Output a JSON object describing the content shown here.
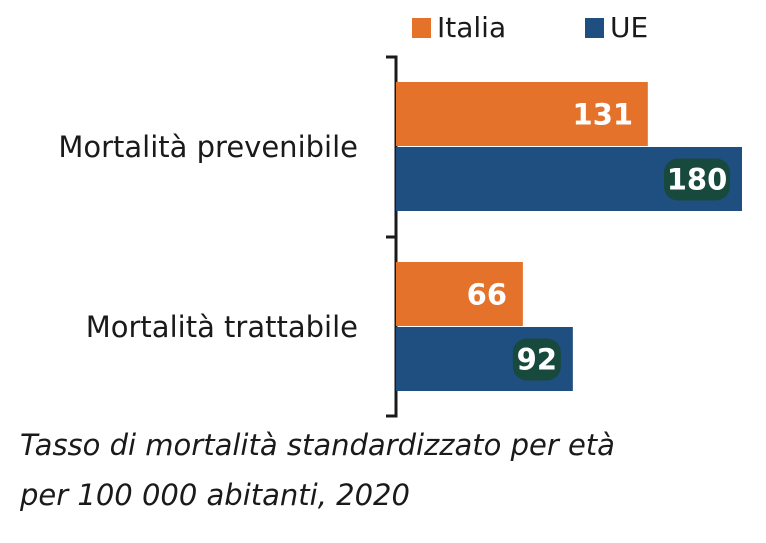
{
  "chart_data": {
    "type": "bar",
    "orientation": "horizontal",
    "categories": [
      "Mortalità prevenibile",
      "Mortalità trattabile"
    ],
    "series": [
      {
        "name": "Italia",
        "values": [
          131,
          66
        ],
        "color": "#e5722a"
      },
      {
        "name": "UE",
        "values": [
          180,
          92
        ],
        "color": "#1f4e80",
        "label_bg": "#18493d"
      }
    ],
    "xlim": [
      0,
      180
    ],
    "legend": "top-right",
    "grid": false,
    "caption_lines": [
      "Tasso di mortalità standardizzato per età",
      "per 100 000 abitanti, 2020"
    ]
  }
}
